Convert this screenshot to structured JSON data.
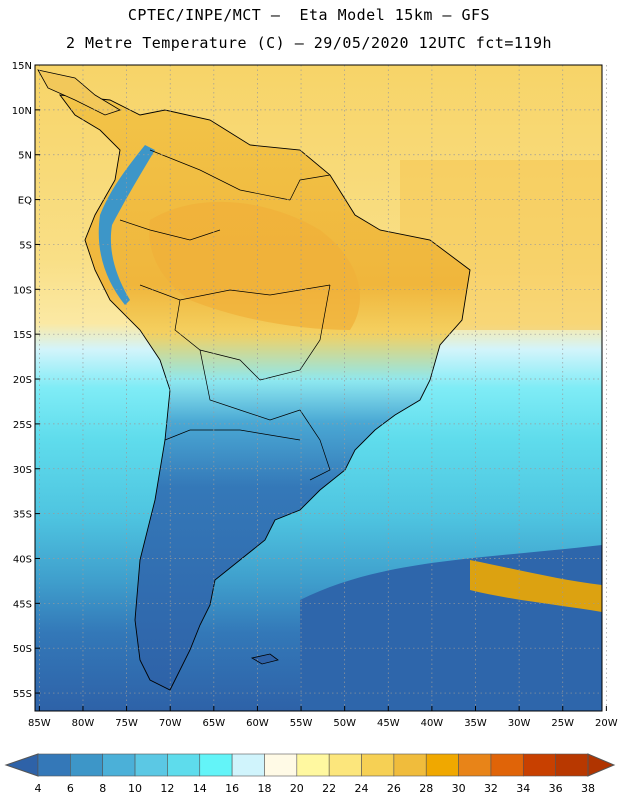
{
  "title_line1": "CPTEC/INPE/MCT –  Eta Model 15km – GFS",
  "title_line2": "2 Metre Temperature (C) – 29/05/2020 12UTC fct=119h",
  "map": {
    "lat_labels": [
      "15N",
      "10N",
      "5N",
      "EQ",
      "5S",
      "10S",
      "15S",
      "20S",
      "25S",
      "30S",
      "35S",
      "40S",
      "45S",
      "50S",
      "55S"
    ],
    "lon_labels": [
      "85W",
      "80W",
      "75W",
      "70W",
      "65W",
      "60W",
      "55W",
      "50W",
      "45W",
      "40W",
      "35W",
      "30W",
      "25W",
      "20W"
    ],
    "lat_range": [
      15,
      -57
    ],
    "lon_range": [
      -85.5,
      -20.5
    ],
    "gridlines": "dotted"
  },
  "colorbar": {
    "labels": [
      "4",
      "6",
      "8",
      "10",
      "12",
      "14",
      "16",
      "18",
      "20",
      "22",
      "24",
      "26",
      "28",
      "30",
      "32",
      "34",
      "36",
      "38"
    ],
    "colors": [
      "#2e62a8",
      "#3478b8",
      "#3d96c8",
      "#4bb0d8",
      "#5bc8e4",
      "#5edcec",
      "#63f4f8",
      "#d0f4fc",
      "#fffae6",
      "#fff8a0",
      "#fce67c",
      "#f6d054",
      "#f0bc3c",
      "#f0a800",
      "#e88418",
      "#e06408",
      "#c84000",
      "#b83800"
    ],
    "under_color": "#2e62a8",
    "over_color": "#b03400"
  }
}
